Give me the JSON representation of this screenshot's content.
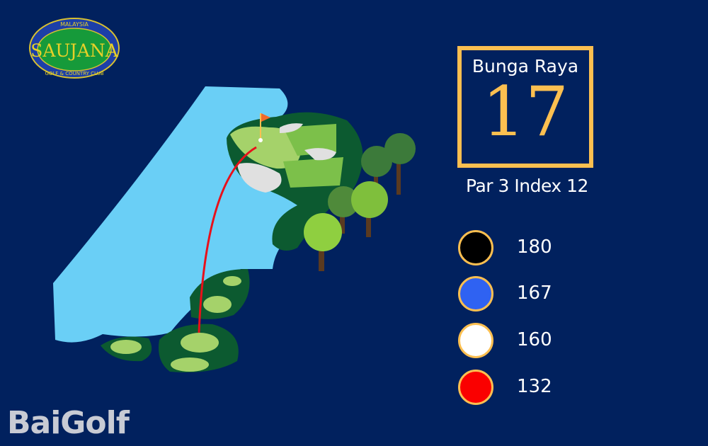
{
  "logo": {
    "text": "SAUJANA",
    "top": "MALAYSIA",
    "bottom": "GOLF & COUNTRY CLUB"
  },
  "hole": {
    "name": "Bunga Raya",
    "number": "17",
    "par_label": "Par 3",
    "index_label": "Index 12"
  },
  "tees": [
    {
      "color": "#000000",
      "distance": "180"
    },
    {
      "color": "#2f62f2",
      "distance": "167"
    },
    {
      "color": "#ffffff",
      "distance": "160"
    },
    {
      "color": "#fa0000",
      "distance": "132"
    }
  ],
  "watermark": "BaiGolf",
  "colors": {
    "background": "#01215e",
    "accent": "#fcbf50",
    "water": "#6acff6",
    "rough": "#0c5a30",
    "fairway": "#a5d26a"
  }
}
